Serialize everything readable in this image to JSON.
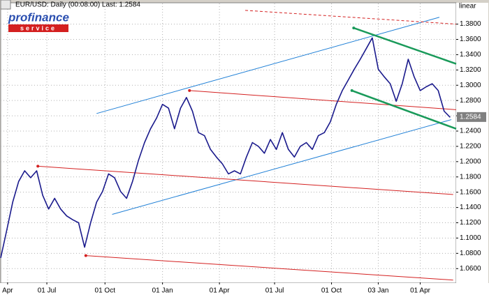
{
  "chart_data": {
    "type": "line",
    "title": "EUR/USD: Daily (00:08:00) Last: 1.2584",
    "scale_label": "linear",
    "logo": {
      "top": "profinance",
      "bottom": "service"
    },
    "last_value": 1.2584,
    "grid": true,
    "xlim": [
      0,
      76
    ],
    "ylim": [
      1.042,
      1.407
    ],
    "xticks": [
      {
        "value": 1.15,
        "label": "Apr"
      },
      {
        "value": 7.7,
        "label": "01 Jul"
      },
      {
        "value": 17.4,
        "label": "01 Oct"
      },
      {
        "value": 27,
        "label": "01 Jan"
      },
      {
        "value": 36.5,
        "label": "01 Apr"
      },
      {
        "value": 45.7,
        "label": "01 Jul"
      },
      {
        "value": 55.2,
        "label": "01 Oct"
      },
      {
        "value": 63,
        "label": "03 Jan"
      },
      {
        "value": 70,
        "label": "01 Apr"
      }
    ],
    "yticks": [
      {
        "value": 1.06,
        "label": "1.0600"
      },
      {
        "value": 1.08,
        "label": "1.0800"
      },
      {
        "value": 1.1,
        "label": "1.1000"
      },
      {
        "value": 1.12,
        "label": "1.1200"
      },
      {
        "value": 1.14,
        "label": "1.1400"
      },
      {
        "value": 1.16,
        "label": "1.1600"
      },
      {
        "value": 1.18,
        "label": "1.1800"
      },
      {
        "value": 1.2,
        "label": "1.2000"
      },
      {
        "value": 1.22,
        "label": "1.2200"
      },
      {
        "value": 1.24,
        "label": "1.2400"
      },
      {
        "value": 1.26,
        "label": "1.2600"
      },
      {
        "value": 1.28,
        "label": "1.2800"
      },
      {
        "value": 1.3,
        "label": "1.3000"
      },
      {
        "value": 1.32,
        "label": "1.3200"
      },
      {
        "value": 1.34,
        "label": "1.3400"
      },
      {
        "value": 1.36,
        "label": "1.3600"
      },
      {
        "value": 1.38,
        "label": "1.3800"
      }
    ],
    "series": [
      {
        "color": "#1a1a8c",
        "values": [
          1.074,
          1.11,
          1.147,
          1.174,
          1.188,
          1.179,
          1.188,
          1.156,
          1.138,
          1.152,
          1.138,
          1.129,
          1.124,
          1.12,
          1.088,
          1.12,
          1.147,
          1.161,
          1.184,
          1.179,
          1.161,
          1.152,
          1.174,
          1.202,
          1.225,
          1.243,
          1.257,
          1.275,
          1.27,
          1.243,
          1.27,
          1.284,
          1.266,
          1.238,
          1.234,
          1.216,
          1.206,
          1.197,
          1.184,
          1.188,
          1.184,
          1.206,
          1.225,
          1.22,
          1.211,
          1.229,
          1.216,
          1.238,
          1.216,
          1.206,
          1.22,
          1.225,
          1.216,
          1.234,
          1.238,
          1.252,
          1.275,
          1.293,
          1.307,
          1.321,
          1.334,
          1.348,
          1.362,
          1.321,
          1.311,
          1.302,
          1.279,
          1.302,
          1.334,
          1.311,
          1.293,
          1.298,
          1.302,
          1.293,
          1.266,
          1.258
        ]
      }
    ],
    "trendlines": [
      {
        "color": "#1e7fd6",
        "dash": false,
        "dots": false,
        "points": [
          [
            16.0,
            1.263
          ],
          [
            73.2,
            1.389
          ]
        ]
      },
      {
        "color": "#1e7fd6",
        "dash": false,
        "dots": false,
        "points": [
          [
            18.6,
            1.131
          ],
          [
            75.2,
            1.255
          ]
        ]
      },
      {
        "color": "#d42020",
        "dash": false,
        "dots": true,
        "points": [
          [
            31.5,
            1.293
          ],
          [
            76,
            1.268
          ]
        ]
      },
      {
        "color": "#d42020",
        "dash": false,
        "dots": true,
        "points": [
          [
            6.2,
            1.194
          ],
          [
            75.5,
            1.157
          ]
        ]
      },
      {
        "color": "#d42020",
        "dash": false,
        "dots": true,
        "points": [
          [
            14.2,
            1.077
          ],
          [
            75.5,
            1.045
          ]
        ]
      },
      {
        "color": "#d42020",
        "dash": true,
        "dots": false,
        "points": [
          [
            40.8,
            1.398
          ],
          [
            76,
            1.38
          ]
        ]
      },
      {
        "color": "#1a9a5a",
        "dash": false,
        "dots": true,
        "points": [
          [
            58.9,
            1.375
          ],
          [
            76,
            1.328
          ]
        ]
      },
      {
        "color": "#1a9a5a",
        "dash": false,
        "dots": true,
        "points": [
          [
            58.6,
            1.293
          ],
          [
            76,
            1.243
          ]
        ]
      }
    ]
  }
}
